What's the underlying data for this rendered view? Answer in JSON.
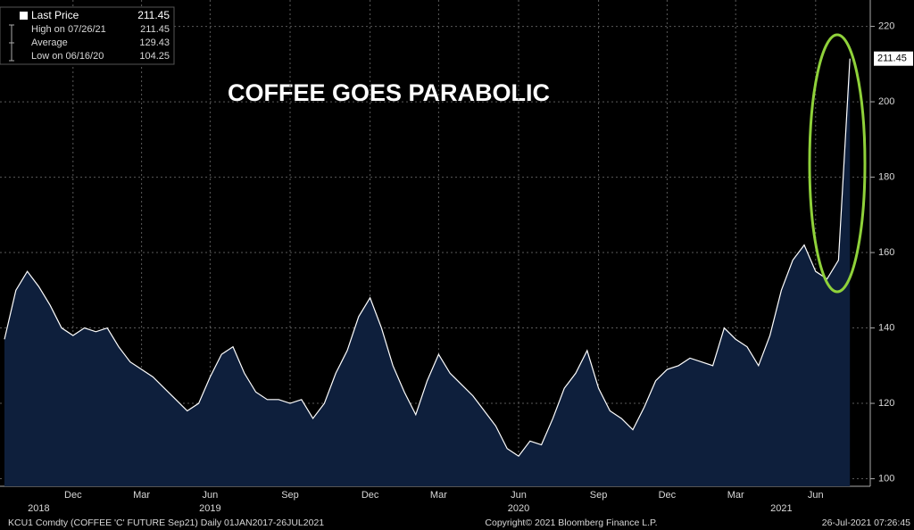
{
  "chart_data": {
    "type": "area",
    "title": "COFFEE GOES PARABOLIC",
    "legend": [
      {
        "label": "Last Price",
        "value": 211.45
      },
      {
        "label": "High on 07/26/21",
        "value": 211.45
      },
      {
        "label": "Average",
        "value": 129.43
      },
      {
        "label": "Low on 06/16/20",
        "value": 104.25
      }
    ],
    "footer": {
      "left": "KCU1 Comdty (COFFEE 'C' FUTURE Sep21)  Daily 01JAN2017-26JUL2021",
      "center": "Copyright© 2021 Bloomberg Finance L.P.",
      "right": "26-Jul-2021 07:26:45"
    },
    "categories": [
      null,
      null,
      null,
      null,
      null,
      null,
      "Dec",
      null,
      null,
      null,
      null,
      null,
      "Mar",
      null,
      null,
      null,
      null,
      null,
      "Jun",
      null,
      null,
      null,
      null,
      null,
      null,
      "Sep",
      null,
      null,
      null,
      null,
      null,
      null,
      "Dec",
      null,
      null,
      null,
      null,
      null,
      "Mar",
      null,
      null,
      null,
      null,
      null,
      null,
      "Jun",
      null,
      null,
      null,
      null,
      null,
      null,
      "Sep",
      null,
      null,
      null,
      null,
      null,
      "Dec",
      null,
      null,
      null,
      null,
      null,
      "Mar",
      null,
      null,
      null,
      null,
      null,
      null,
      "Jun",
      null,
      null,
      null
    ],
    "year_categories": [
      null,
      null,
      null,
      "2018",
      null,
      null,
      null,
      null,
      null,
      null,
      null,
      null,
      null,
      null,
      null,
      null,
      null,
      null,
      "2019",
      null,
      null,
      null,
      null,
      null,
      null,
      null,
      null,
      null,
      null,
      null,
      null,
      null,
      null,
      null,
      null,
      null,
      null,
      null,
      null,
      null,
      null,
      null,
      null,
      null,
      null,
      "2020",
      null,
      null,
      null,
      null,
      null,
      null,
      null,
      null,
      null,
      null,
      null,
      null,
      null,
      null,
      null,
      null,
      null,
      null,
      null,
      null,
      null,
      null,
      "2021",
      null,
      null,
      null,
      null,
      null,
      null
    ],
    "values": [
      137,
      150,
      155,
      151,
      146,
      140,
      138,
      140,
      139,
      140,
      135,
      131,
      129,
      127,
      124,
      121,
      118,
      120,
      127,
      133,
      135,
      128,
      123,
      121,
      121,
      120,
      121,
      116,
      120,
      128,
      134,
      143,
      148,
      140,
      130,
      123,
      117,
      126,
      133,
      128,
      125,
      122,
      118,
      114,
      108,
      106,
      110,
      109,
      116,
      124,
      128,
      134,
      124,
      118,
      116,
      113,
      119,
      126,
      129,
      130,
      132,
      131,
      130,
      140,
      137,
      135,
      130,
      138,
      150,
      158,
      162,
      155,
      153,
      158,
      211.45
    ],
    "color": "#ffffff",
    "area_color": "#0e1f3c",
    "annotation_color": "#8fd13a",
    "ylim": [
      98,
      227
    ],
    "yticks": [
      100,
      120,
      140,
      160,
      180,
      200,
      220
    ],
    "grid": true
  }
}
